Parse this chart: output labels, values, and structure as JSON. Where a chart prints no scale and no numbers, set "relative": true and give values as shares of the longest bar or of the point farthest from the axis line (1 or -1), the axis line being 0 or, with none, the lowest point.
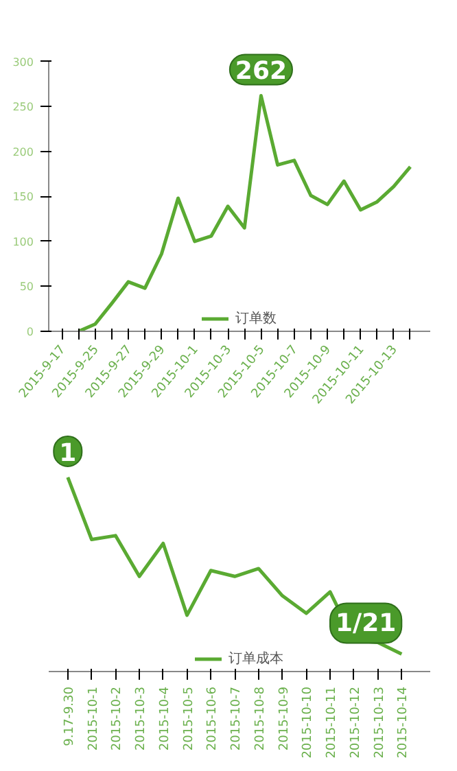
{
  "chart_data": [
    {
      "type": "line",
      "categories": [
        "2015-9-17",
        null,
        "2015-9-25",
        null,
        "2015-9-27",
        null,
        "2015-9-29",
        null,
        "2015-10-1",
        null,
        "2015-10-3",
        null,
        "2015-10-5",
        null,
        "2015-10-7",
        null,
        "2015-10-9",
        null,
        "2015-10-11",
        null,
        "2015-10-13",
        null
      ],
      "series": [
        {
          "name": "订单数",
          "color": "#5aaa32",
          "values": [
            null,
            0,
            8,
            31,
            55,
            48,
            86,
            148,
            100,
            106,
            139,
            115,
            262,
            185,
            190,
            151,
            141,
            167,
            135,
            144,
            161,
            183
          ]
        }
      ],
      "ylim": [
        0,
        300
      ],
      "yticks": [
        0,
        50,
        100,
        150,
        200,
        250,
        300
      ],
      "annotations": [
        {
          "text": "262",
          "x": "2015-10-5",
          "y": 262
        }
      ],
      "legend": "bottom",
      "grid": false
    },
    {
      "type": "line",
      "categories": [
        "9.17-9.30",
        "2015-10-1",
        "2015-10-2",
        "2015-10-3",
        "2015-10-4",
        "2015-10-5",
        "2015-10-6",
        "2015-10-7",
        "2015-10-8",
        "2015-10-9",
        "2015-10-10",
        "2015-10-11",
        "2015-10-12",
        "2015-10-13",
        "2015-10-14"
      ],
      "series": [
        {
          "name": "订单成本",
          "color": "#5aaa32",
          "values": [
            1.0,
            0.68,
            0.7,
            0.49,
            0.66,
            0.29,
            0.52,
            0.49,
            0.53,
            0.39,
            0.3,
            0.41,
            0.16,
            0.15,
            0.09
          ]
        }
      ],
      "relative": true,
      "annotations": [
        {
          "text": "1",
          "x": "9.17-9.30",
          "y": 1.0
        },
        {
          "text": "1/21",
          "x": "2015-10-14",
          "y": 0.09
        }
      ],
      "legend": "bottom",
      "grid": false
    }
  ]
}
